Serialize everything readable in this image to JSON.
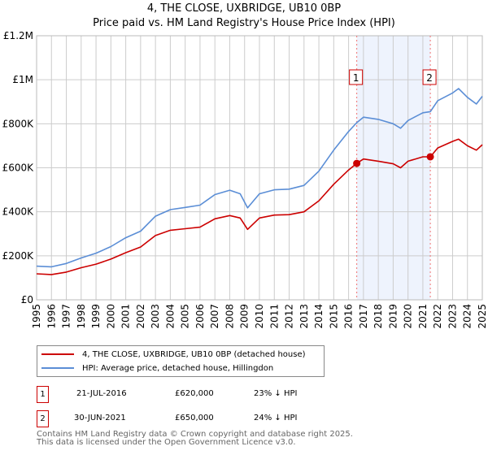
{
  "chart_data": {
    "type": "line",
    "title": "4, THE CLOSE, UXBRIDGE, UB10 0BP",
    "subtitle": "Price paid vs. HM Land Registry's House Price Index (HPI)",
    "xlim": [
      1995,
      2025
    ],
    "ylim": [
      0,
      1200000
    ],
    "x_ticks": [
      "1995",
      "1996",
      "1997",
      "1998",
      "1999",
      "2000",
      "2001",
      "2002",
      "2003",
      "2004",
      "2005",
      "2006",
      "2007",
      "2008",
      "2009",
      "2010",
      "2011",
      "2012",
      "2013",
      "2014",
      "2015",
      "2016",
      "2017",
      "2018",
      "2019",
      "2020",
      "2021",
      "2022",
      "2023",
      "2024",
      "2025"
    ],
    "y_ticks": [
      {
        "v": 0,
        "label": "£0"
      },
      {
        "v": 200000,
        "label": "£200K"
      },
      {
        "v": 400000,
        "label": "£400K"
      },
      {
        "v": 600000,
        "label": "£600K"
      },
      {
        "v": 800000,
        "label": "£800K"
      },
      {
        "v": 1000000,
        "label": "£1M"
      },
      {
        "v": 1200000,
        "label": "£1.2M"
      }
    ],
    "grid": true,
    "series": [
      {
        "name": "4, THE CLOSE, UXBRIDGE, UB10 0BP (detached house)",
        "color": "#cc0000",
        "x": [
          1995,
          1996,
          1997,
          1998,
          1999,
          2000,
          2001,
          2002,
          2003,
          2004,
          2005,
          2006,
          2007,
          2008,
          2008.7,
          2009.2,
          2010,
          2011,
          2012,
          2013,
          2014,
          2015,
          2016,
          2016.55,
          2017,
          2018,
          2019,
          2019.5,
          2020,
          2021,
          2021.5,
          2022,
          2023,
          2023.4,
          2024,
          2024.6,
          2025
        ],
        "y": [
          118000,
          115000,
          126000,
          146000,
          162000,
          185000,
          214000,
          240000,
          292000,
          316000,
          323000,
          330000,
          368000,
          383000,
          372000,
          320000,
          372000,
          385000,
          387000,
          400000,
          450000,
          525000,
          590000,
          620000,
          640000,
          630000,
          618000,
          600000,
          630000,
          650000,
          650000,
          690000,
          720000,
          730000,
          700000,
          680000,
          705000
        ]
      },
      {
        "name": "HPI: Average price, detached house, Hillingdon",
        "color": "#5b8ed6",
        "x": [
          1995,
          1996,
          1997,
          1998,
          1999,
          2000,
          2001,
          2002,
          2003,
          2004,
          2005,
          2006,
          2007,
          2008,
          2008.7,
          2009.2,
          2010,
          2011,
          2012,
          2013,
          2014,
          2015,
          2016,
          2016.55,
          2017,
          2018,
          2019,
          2019.5,
          2020,
          2021,
          2021.5,
          2022,
          2023,
          2023.4,
          2024,
          2024.6,
          2025
        ],
        "y": [
          153000,
          150000,
          165000,
          190000,
          212000,
          242000,
          282000,
          312000,
          380000,
          410000,
          420000,
          430000,
          478000,
          498000,
          482000,
          418000,
          482000,
          500000,
          503000,
          520000,
          585000,
          680000,
          765000,
          805000,
          830000,
          820000,
          800000,
          780000,
          815000,
          850000,
          855000,
          905000,
          940000,
          960000,
          920000,
          890000,
          925000
        ]
      }
    ],
    "annotations": [
      {
        "id": "1",
        "x": 2016.55,
        "date": "21-JUL-2016",
        "price": "£620,000",
        "hpi": "23% ↓ HPI",
        "value": 620000
      },
      {
        "id": "2",
        "x": 2021.5,
        "date": "30-JUN-2021",
        "price": "£650,000",
        "hpi": "24% ↓ HPI",
        "value": 650000
      }
    ],
    "legend": "bottom"
  },
  "footer": {
    "line1": "Contains HM Land Registry data © Crown copyright and database right 2025.",
    "line2": "This data is licensed under the Open Government Licence v3.0."
  }
}
